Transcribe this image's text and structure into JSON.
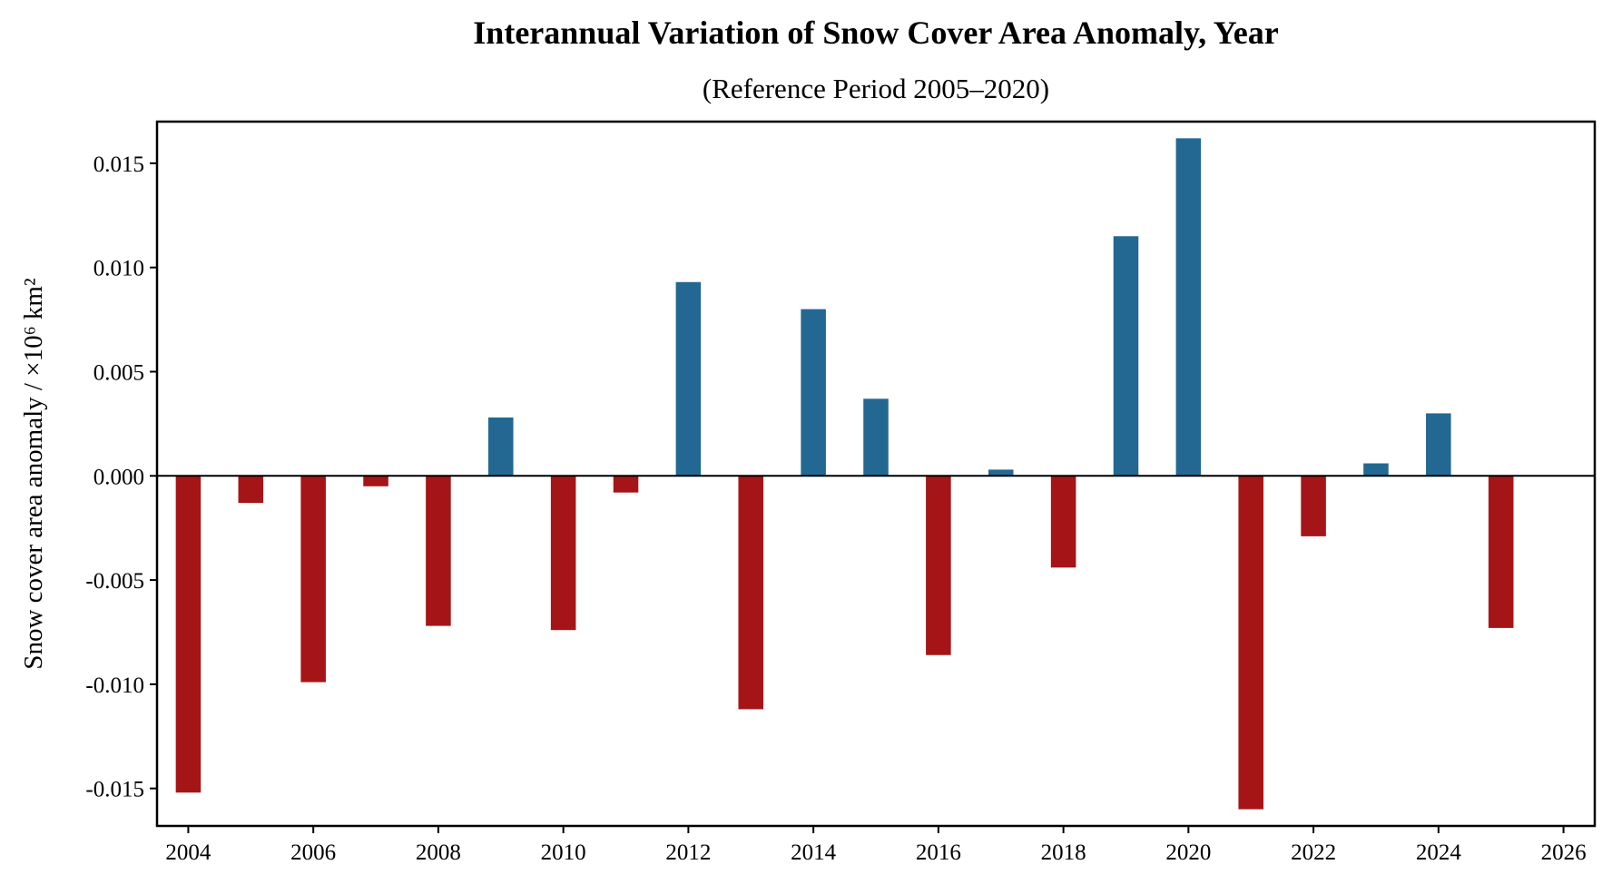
{
  "chart_data": {
    "type": "bar",
    "title": "Interannual Variation of Snow Cover Area Anomaly, Year",
    "subtitle": "(Reference Period 2005–2020)",
    "xlabel": "",
    "ylabel": "Snow cover area anomaly / ×10⁶ km²",
    "x": [
      2004,
      2005,
      2006,
      2007,
      2008,
      2009,
      2010,
      2011,
      2012,
      2013,
      2014,
      2015,
      2016,
      2017,
      2018,
      2019,
      2020,
      2021,
      2022,
      2023,
      2024,
      2025
    ],
    "values": [
      -0.0152,
      -0.0013,
      -0.0099,
      -0.0005,
      -0.0072,
      0.0028,
      -0.0074,
      -0.0008,
      0.0093,
      -0.0112,
      0.008,
      0.0037,
      -0.0086,
      0.0003,
      -0.0044,
      0.0115,
      0.0162,
      -0.016,
      -0.0029,
      0.0006,
      0.003,
      -0.0073
    ],
    "xlim": [
      2003.5,
      2026.5
    ],
    "ylim": [
      -0.0168,
      0.017
    ],
    "xticks": [
      "2004",
      "2006",
      "2008",
      "2010",
      "2012",
      "2014",
      "2016",
      "2018",
      "2020",
      "2022",
      "2024",
      "2026"
    ],
    "yticks": [
      "-0.015",
      "-0.010",
      "-0.005",
      "0.000",
      "0.005",
      "0.010",
      "0.015"
    ],
    "colors": {
      "positive": "#236892",
      "negative": "#a51517",
      "zero_line": "#000000"
    },
    "grid": false,
    "legend": "none"
  }
}
